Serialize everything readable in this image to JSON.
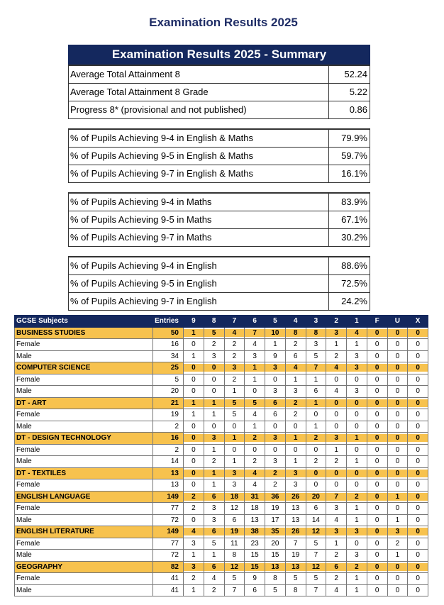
{
  "title": "Examination Results 2025",
  "summary": {
    "header": "Examination Results 2025 - Summary",
    "groups": [
      [
        [
          "Average Total Attainment 8",
          "52.24"
        ],
        [
          "Average Total Attainment 8 Grade",
          "5.22"
        ],
        [
          "Progress 8* (provisional and not published)",
          "0.86"
        ]
      ],
      [
        [
          "% of Pupils Achieving 9-4 in English & Maths",
          "79.9%"
        ],
        [
          "% of Pupils Achieving 9-5 in English & Maths",
          "59.7%"
        ],
        [
          "% of Pupils Achieving 9-7 in English & Maths",
          "16.1%"
        ]
      ],
      [
        [
          "% of Pupils Achieving 9-4 in Maths",
          "83.9%"
        ],
        [
          "% of Pupils Achieving 9-5 in Maths",
          "67.1%"
        ],
        [
          "% of Pupils Achieving 9-7 in Maths",
          "30.2%"
        ]
      ],
      [
        [
          "% of Pupils Achieving 9-4 in English",
          "88.6%"
        ],
        [
          "% of Pupils Achieving 9-5 in English",
          "72.5%"
        ],
        [
          "% of Pupils Achieving 9-7 in English",
          "24.2%"
        ]
      ]
    ]
  },
  "gcse": {
    "header": [
      "GCSE Subjects",
      "Entries",
      "9",
      "8",
      "7",
      "6",
      "5",
      "4",
      "3",
      "2",
      "1",
      "F",
      "U",
      "X"
    ],
    "subjects": [
      {
        "row": [
          "BUSINESS STUDIES",
          "50",
          "1",
          "5",
          "4",
          "7",
          "10",
          "8",
          "8",
          "3",
          "4",
          "0",
          "0",
          "0"
        ],
        "breakdown": [
          [
            "Female",
            "16",
            "0",
            "2",
            "2",
            "4",
            "1",
            "2",
            "3",
            "1",
            "1",
            "0",
            "0",
            "0"
          ],
          [
            "Male",
            "34",
            "1",
            "3",
            "2",
            "3",
            "9",
            "6",
            "5",
            "2",
            "3",
            "0",
            "0",
            "0"
          ]
        ]
      },
      {
        "row": [
          "COMPUTER SCIENCE",
          "25",
          "0",
          "0",
          "3",
          "1",
          "3",
          "4",
          "7",
          "4",
          "3",
          "0",
          "0",
          "0"
        ],
        "breakdown": [
          [
            "Female",
            "5",
            "0",
            "0",
            "2",
            "1",
            "0",
            "1",
            "1",
            "0",
            "0",
            "0",
            "0",
            "0"
          ],
          [
            "Male",
            "20",
            "0",
            "0",
            "1",
            "0",
            "3",
            "3",
            "6",
            "4",
            "3",
            "0",
            "0",
            "0"
          ]
        ]
      },
      {
        "row": [
          "DT - ART",
          "21",
          "1",
          "1",
          "5",
          "5",
          "6",
          "2",
          "1",
          "0",
          "0",
          "0",
          "0",
          "0"
        ],
        "breakdown": [
          [
            "Female",
            "19",
            "1",
            "1",
            "5",
            "4",
            "6",
            "2",
            "0",
            "0",
            "0",
            "0",
            "0",
            "0"
          ],
          [
            "Male",
            "2",
            "0",
            "0",
            "0",
            "1",
            "0",
            "0",
            "1",
            "0",
            "0",
            "0",
            "0",
            "0"
          ]
        ]
      },
      {
        "row": [
          "DT - DESIGN TECHNOLOGY",
          "16",
          "0",
          "3",
          "1",
          "2",
          "3",
          "1",
          "2",
          "3",
          "1",
          "0",
          "0",
          "0"
        ],
        "breakdown": [
          [
            "Female",
            "2",
            "0",
            "1",
            "0",
            "0",
            "0",
            "0",
            "0",
            "1",
            "0",
            "0",
            "0",
            "0"
          ],
          [
            "Male",
            "14",
            "0",
            "2",
            "1",
            "2",
            "3",
            "1",
            "2",
            "2",
            "1",
            "0",
            "0",
            "0"
          ]
        ]
      },
      {
        "row": [
          "DT - TEXTILES",
          "13",
          "0",
          "1",
          "3",
          "4",
          "2",
          "3",
          "0",
          "0",
          "0",
          "0",
          "0",
          "0"
        ],
        "breakdown": [
          [
            "Female",
            "13",
            "0",
            "1",
            "3",
            "4",
            "2",
            "3",
            "0",
            "0",
            "0",
            "0",
            "0",
            "0"
          ]
        ]
      },
      {
        "row": [
          "ENGLISH LANGUAGE",
          "149",
          "2",
          "6",
          "18",
          "31",
          "36",
          "26",
          "20",
          "7",
          "2",
          "0",
          "1",
          "0"
        ],
        "breakdown": [
          [
            "Female",
            "77",
            "2",
            "3",
            "12",
            "18",
            "19",
            "13",
            "6",
            "3",
            "1",
            "0",
            "0",
            "0"
          ],
          [
            "Male",
            "72",
            "0",
            "3",
            "6",
            "13",
            "17",
            "13",
            "14",
            "4",
            "1",
            "0",
            "1",
            "0"
          ]
        ]
      },
      {
        "row": [
          "ENGLISH LITERATURE",
          "149",
          "4",
          "6",
          "19",
          "38",
          "35",
          "26",
          "12",
          "3",
          "3",
          "0",
          "3",
          "0"
        ],
        "breakdown": [
          [
            "Female",
            "77",
            "3",
            "5",
            "11",
            "23",
            "20",
            "7",
            "5",
            "1",
            "0",
            "0",
            "2",
            "0"
          ],
          [
            "Male",
            "72",
            "1",
            "1",
            "8",
            "15",
            "15",
            "19",
            "7",
            "2",
            "3",
            "0",
            "1",
            "0"
          ]
        ]
      },
      {
        "row": [
          "GEOGRAPHY",
          "82",
          "3",
          "6",
          "12",
          "15",
          "13",
          "13",
          "12",
          "6",
          "2",
          "0",
          "0",
          "0"
        ],
        "breakdown": [
          [
            "Female",
            "41",
            "2",
            "4",
            "5",
            "9",
            "8",
            "5",
            "5",
            "2",
            "1",
            "0",
            "0",
            "0"
          ],
          [
            "Male",
            "41",
            "1",
            "2",
            "7",
            "6",
            "5",
            "8",
            "7",
            "4",
            "1",
            "0",
            "0",
            "0"
          ]
        ]
      }
    ]
  }
}
